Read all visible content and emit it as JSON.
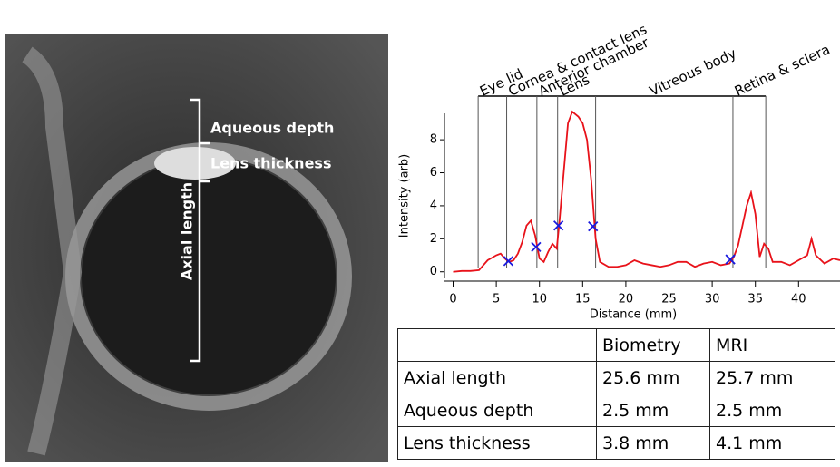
{
  "image": {
    "labels": [
      "Aqueous depth",
      "Lens thickness",
      "Axial length"
    ]
  },
  "chart_data": {
    "type": "line",
    "x_label": "Distance (mm)",
    "y_label": "Intensity (arb)",
    "xlim": [
      -1,
      44.8
    ],
    "ylim": [
      -0.4,
      9.6
    ],
    "xticks": [
      0,
      5,
      10,
      15,
      20,
      25,
      30,
      35,
      40
    ],
    "yticks": [
      0,
      2,
      4,
      6,
      8
    ],
    "series": [
      {
        "color": "#e8121a",
        "x": [
          0,
          1,
          2,
          3,
          3.5,
          4,
          5,
          5.5,
          6,
          6.5,
          7,
          7.5,
          8,
          8.5,
          9,
          9.5,
          10,
          10.5,
          11,
          11.5,
          12,
          12.3,
          12.8,
          13.3,
          13.8,
          14.5,
          15,
          15.5,
          16,
          16.5,
          17,
          18,
          19,
          20,
          21,
          22,
          23,
          24,
          25,
          26,
          27,
          28,
          29,
          30,
          31,
          32,
          32.5,
          33,
          33.5,
          34,
          34.5,
          35,
          35.5,
          36,
          36.5,
          37,
          38,
          39,
          40,
          41,
          41.5,
          42,
          43,
          44,
          44.8
        ],
        "values": [
          0,
          0.05,
          0.05,
          0.1,
          0.4,
          0.7,
          1.0,
          1.1,
          0.8,
          0.6,
          0.7,
          1.1,
          1.8,
          2.8,
          3.1,
          2.2,
          0.8,
          0.6,
          1.2,
          1.7,
          1.4,
          3.0,
          6.0,
          9.0,
          9.7,
          9.4,
          9.0,
          8.0,
          5.5,
          2.0,
          0.6,
          0.3,
          0.3,
          0.4,
          0.7,
          0.5,
          0.4,
          0.3,
          0.4,
          0.6,
          0.6,
          0.3,
          0.5,
          0.6,
          0.4,
          0.5,
          0.9,
          1.6,
          2.8,
          4.0,
          4.8,
          3.5,
          0.9,
          1.7,
          1.4,
          0.6,
          0.6,
          0.4,
          0.7,
          1.0,
          2.0,
          1.0,
          0.5,
          0.8,
          0.7
        ]
      }
    ],
    "markers": {
      "color": "#1a1adf",
      "x": [
        6.4,
        9.6,
        12.2,
        16.2,
        32.1
      ],
      "values": [
        0.65,
        1.5,
        2.8,
        2.75,
        0.75
      ]
    },
    "boundaries": [
      2.9,
      6.2,
      9.7,
      12.1,
      16.5,
      32.4,
      36.2
    ],
    "region_labels": [
      "Eye lid",
      "Cornea & contact lens",
      "Anterior chamber",
      "Lens",
      "Vitreous body",
      "Retina & sclera"
    ]
  },
  "table": {
    "columns": [
      "Biometry",
      "MRI"
    ],
    "rows": [
      [
        "Axial length",
        "25.6 mm",
        "25.7 mm"
      ],
      [
        "Aqueous depth",
        "2.5 mm",
        "2.5 mm"
      ],
      [
        "Lens thickness",
        "3.8 mm",
        "4.1 mm"
      ]
    ]
  }
}
